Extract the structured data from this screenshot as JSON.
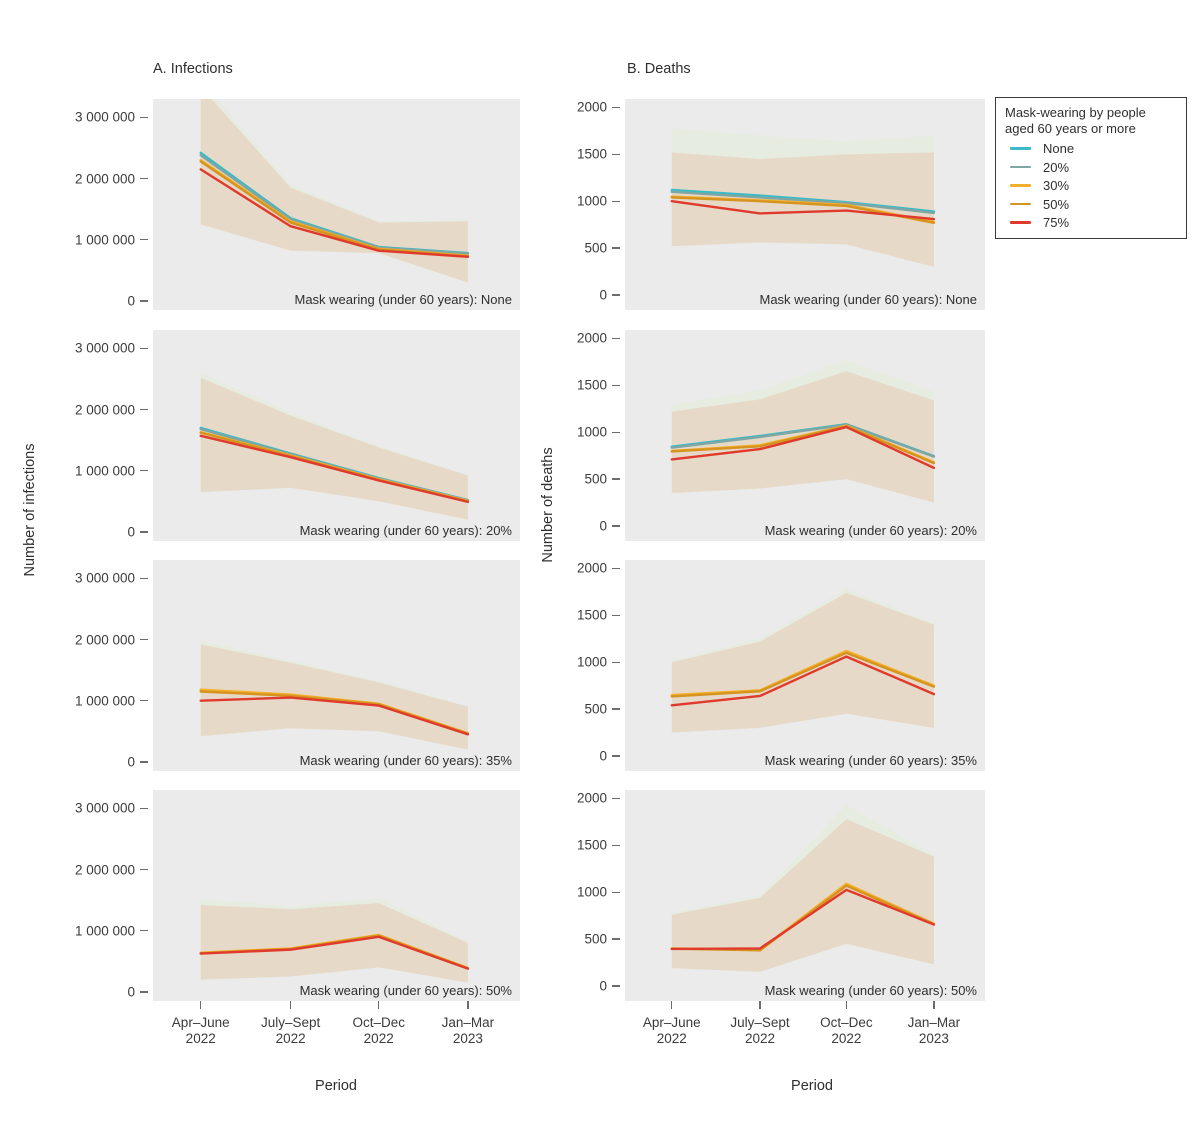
{
  "figure_titles": {
    "infections": "A. Infections",
    "deaths": "B. Deaths"
  },
  "axes": {
    "x_label": "Period",
    "x_ticks": [
      [
        "Apr–June",
        "2022"
      ],
      [
        "July–Sept",
        "2022"
      ],
      [
        "Oct–Dec",
        "2022"
      ],
      [
        "Jan–Mar",
        "2023"
      ]
    ],
    "y_label_infections": "Number of infections",
    "y_label_deaths": "Number of deaths"
  },
  "legend": {
    "title_lines": [
      "Mask-wearing by people",
      "aged 60 years or more"
    ],
    "entries": [
      {
        "label": "None",
        "color": "#3bbac8"
      },
      {
        "label": "20%",
        "color": "#7ea7a3"
      },
      {
        "label": "30%",
        "color": "#f2b02e"
      },
      {
        "label": "50%",
        "color": "#d6941f"
      },
      {
        "label": "75%",
        "color": "#df3a2c"
      }
    ]
  },
  "colors": {
    "panel_bg": "#ebebeb",
    "band": "#e7d8c6",
    "band2": "#e6ecdf",
    "text": "#3b3b3b"
  },
  "chart_data": [
    {
      "id": "infections-none",
      "type": "line",
      "column": "infections",
      "row": 0,
      "annotation": "Mask wearing (under 60 years): None",
      "ylim": [
        -150000,
        3300000
      ],
      "yticks": [
        {
          "v": 3000000,
          "label": "3 000 000"
        },
        {
          "v": 2000000,
          "label": "2 000 000"
        },
        {
          "v": 1000000,
          "label": "1 000 000"
        },
        {
          "v": 0,
          "label": "0"
        }
      ],
      "band": {
        "lower": [
          1250000,
          820000,
          780000,
          300000
        ],
        "upper": [
          3500000,
          1850000,
          1280000,
          1300000
        ]
      },
      "band2_upper": [
        3600000,
        1900000,
        1300000,
        1320000
      ],
      "series": [
        {
          "name": "None",
          "values": [
            2420000,
            1350000,
            880000,
            780000
          ]
        },
        {
          "name": "20%",
          "values": [
            2380000,
            1330000,
            870000,
            770000
          ]
        },
        {
          "name": "30%",
          "values": [
            2300000,
            1300000,
            850000,
            740000
          ]
        },
        {
          "name": "50%",
          "values": [
            2280000,
            1280000,
            840000,
            730000
          ]
        },
        {
          "name": "75%",
          "values": [
            2150000,
            1220000,
            820000,
            720000
          ]
        }
      ]
    },
    {
      "id": "infections-20",
      "type": "line",
      "column": "infections",
      "row": 1,
      "annotation": "Mask wearing (under 60 years): 20%",
      "ylim": [
        -150000,
        3300000
      ],
      "yticks": [
        {
          "v": 3000000,
          "label": "3 000 000"
        },
        {
          "v": 2000000,
          "label": "2 000 000"
        },
        {
          "v": 1000000,
          "label": "1 000 000"
        },
        {
          "v": 0,
          "label": "0"
        }
      ],
      "band": {
        "lower": [
          650000,
          720000,
          500000,
          200000
        ],
        "upper": [
          2520000,
          1900000,
          1380000,
          920000
        ]
      },
      "band2_upper": [
        2600000,
        1950000,
        1400000,
        930000
      ],
      "series": [
        {
          "name": "None",
          "values": [
            1700000,
            1280000,
            880000,
            520000
          ]
        },
        {
          "name": "20%",
          "values": [
            1680000,
            1270000,
            870000,
            515000
          ]
        },
        {
          "name": "30%",
          "values": [
            1630000,
            1250000,
            860000,
            505000
          ]
        },
        {
          "name": "50%",
          "values": [
            1620000,
            1240000,
            850000,
            500000
          ]
        },
        {
          "name": "75%",
          "values": [
            1570000,
            1220000,
            840000,
            490000
          ]
        }
      ]
    },
    {
      "id": "infections-35",
      "type": "line",
      "column": "infections",
      "row": 2,
      "annotation": "Mask wearing (under 60 years): 35%",
      "ylim": [
        -150000,
        3300000
      ],
      "yticks": [
        {
          "v": 3000000,
          "label": "3 000 000"
        },
        {
          "v": 2000000,
          "label": "2 000 000"
        },
        {
          "v": 1000000,
          "label": "1 000 000"
        },
        {
          "v": 0,
          "label": "0"
        }
      ],
      "band": {
        "lower": [
          420000,
          550000,
          500000,
          200000
        ],
        "upper": [
          1920000,
          1620000,
          1300000,
          900000
        ]
      },
      "band2_upper": [
        1980000,
        1650000,
        1320000,
        910000
      ],
      "series": [
        {
          "name": "30%",
          "values": [
            1180000,
            1100000,
            950000,
            470000
          ]
        },
        {
          "name": "50%",
          "values": [
            1150000,
            1080000,
            940000,
            460000
          ]
        },
        {
          "name": "75%",
          "values": [
            1000000,
            1050000,
            920000,
            450000
          ]
        }
      ]
    },
    {
      "id": "infections-50",
      "type": "line",
      "column": "infections",
      "row": 3,
      "annotation": "Mask wearing (under 60 years): 50%",
      "ylim": [
        -150000,
        3300000
      ],
      "yticks": [
        {
          "v": 3000000,
          "label": "3 000 000"
        },
        {
          "v": 2000000,
          "label": "2 000 000"
        },
        {
          "v": 1000000,
          "label": "1 000 000"
        },
        {
          "v": 0,
          "label": "0"
        }
      ],
      "band": {
        "lower": [
          200000,
          250000,
          400000,
          150000
        ],
        "upper": [
          1420000,
          1350000,
          1450000,
          800000
        ]
      },
      "band2_upper": [
        1520000,
        1400000,
        1530000,
        820000
      ],
      "series": [
        {
          "name": "30%",
          "values": [
            640000,
            710000,
            930000,
            390000
          ]
        },
        {
          "name": "50%",
          "values": [
            630000,
            700000,
            920000,
            385000
          ]
        },
        {
          "name": "75%",
          "values": [
            625000,
            690000,
            900000,
            380000
          ]
        }
      ]
    },
    {
      "id": "deaths-none",
      "type": "line",
      "column": "deaths",
      "row": 0,
      "annotation": "Mask wearing (under 60 years): None",
      "ylim": [
        -160,
        2090
      ],
      "yticks": [
        {
          "v": 2000,
          "label": "2000"
        },
        {
          "v": 1500,
          "label": "1500"
        },
        {
          "v": 1000,
          "label": "1000"
        },
        {
          "v": 500,
          "label": "500"
        },
        {
          "v": 0,
          "label": "0"
        }
      ],
      "band": {
        "lower": [
          520,
          560,
          540,
          300
        ],
        "upper": [
          1520,
          1450,
          1500,
          1520
        ]
      },
      "band2_upper": [
        1780,
        1700,
        1640,
        1700
      ],
      "series": [
        {
          "name": "None",
          "values": [
            1120,
            1060,
            990,
            890
          ]
        },
        {
          "name": "20%",
          "values": [
            1100,
            1040,
            980,
            875
          ]
        },
        {
          "name": "30%",
          "values": [
            1050,
            1010,
            960,
            780
          ]
        },
        {
          "name": "50%",
          "values": [
            1040,
            1000,
            950,
            770
          ]
        },
        {
          "name": "75%",
          "values": [
            1000,
            870,
            900,
            810
          ]
        }
      ]
    },
    {
      "id": "deaths-20",
      "type": "line",
      "column": "deaths",
      "row": 1,
      "annotation": "Mask wearing (under 60 years): 20%",
      "ylim": [
        -160,
        2090
      ],
      "yticks": [
        {
          "v": 2000,
          "label": "2000"
        },
        {
          "v": 1500,
          "label": "1500"
        },
        {
          "v": 1000,
          "label": "1000"
        },
        {
          "v": 500,
          "label": "500"
        },
        {
          "v": 0,
          "label": "0"
        }
      ],
      "band": {
        "lower": [
          350,
          400,
          500,
          250
        ],
        "upper": [
          1220,
          1350,
          1650,
          1340
        ]
      },
      "band2_upper": [
        1290,
        1450,
        1770,
        1430
      ],
      "series": [
        {
          "name": "None",
          "values": [
            845,
            960,
            1085,
            745
          ]
        },
        {
          "name": "20%",
          "values": [
            835,
            950,
            1080,
            740
          ]
        },
        {
          "name": "30%",
          "values": [
            800,
            860,
            1070,
            680
          ]
        },
        {
          "name": "50%",
          "values": [
            795,
            850,
            1065,
            670
          ]
        },
        {
          "name": "75%",
          "values": [
            710,
            820,
            1055,
            620
          ]
        }
      ]
    },
    {
      "id": "deaths-35",
      "type": "line",
      "column": "deaths",
      "row": 2,
      "annotation": "Mask wearing (under 60 years): 35%",
      "ylim": [
        -160,
        2090
      ],
      "yticks": [
        {
          "v": 2000,
          "label": "2000"
        },
        {
          "v": 1500,
          "label": "1500"
        },
        {
          "v": 1000,
          "label": "1000"
        },
        {
          "v": 500,
          "label": "500"
        },
        {
          "v": 0,
          "label": "0"
        }
      ],
      "band": {
        "lower": [
          250,
          300,
          450,
          300
        ],
        "upper": [
          1000,
          1220,
          1740,
          1400
        ]
      },
      "band2_upper": [
        1020,
        1250,
        1780,
        1420
      ],
      "series": [
        {
          "name": "30%",
          "values": [
            650,
            700,
            1120,
            750
          ]
        },
        {
          "name": "50%",
          "values": [
            635,
            690,
            1100,
            740
          ]
        },
        {
          "name": "75%",
          "values": [
            540,
            640,
            1060,
            660
          ]
        }
      ]
    },
    {
      "id": "deaths-50",
      "type": "line",
      "column": "deaths",
      "row": 3,
      "annotation": "Mask wearing (under 60 years): 50%",
      "ylim": [
        -160,
        2090
      ],
      "yticks": [
        {
          "v": 2000,
          "label": "2000"
        },
        {
          "v": 1500,
          "label": "1500"
        },
        {
          "v": 1000,
          "label": "1000"
        },
        {
          "v": 500,
          "label": "500"
        },
        {
          "v": 0,
          "label": "0"
        }
      ],
      "band": {
        "lower": [
          190,
          150,
          450,
          230
        ],
        "upper": [
          760,
          940,
          1780,
          1380
        ]
      },
      "band2_upper": [
        780,
        960,
        1930,
        1400
      ],
      "series": [
        {
          "name": "30%",
          "values": [
            400,
            385,
            1090,
            665
          ]
        },
        {
          "name": "50%",
          "values": [
            398,
            380,
            1070,
            660
          ]
        },
        {
          "name": "75%",
          "values": [
            395,
            400,
            1025,
            655
          ]
        }
      ]
    }
  ]
}
